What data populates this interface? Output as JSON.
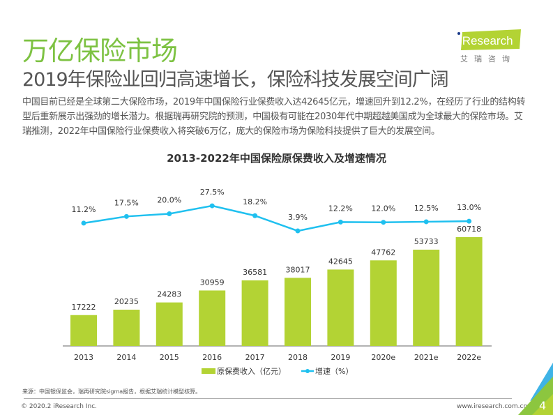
{
  "header": {
    "title": "万亿保险市场",
    "subtitle": "2019年保险业回归高速增长，保险科技发展空间广阔",
    "body": "中国目前已经是全球第二大保险市场，2019年中国保险行业保费收入达42645亿元，增速回升到12.2%，在经历了行业的结构转型后重新展示出强劲的增长潜力。根据瑞再研究院的预测，中国极有可能在2030年代中期超越美国成为全球最大的保险市场。艾瑞推测，2022年中国保险行业保费收入将突破6万亿，庞大的保险市场为保险科技提供了巨大的发展空间。"
  },
  "logo": {
    "text": "iResearch",
    "sub": "艾瑞咨询",
    "color": "#b3d334"
  },
  "chart_data": {
    "type": "bar+line",
    "title": "2013-2022年中国保险原保费收入及增速情况",
    "categories": [
      "2013",
      "2014",
      "2015",
      "2016",
      "2017",
      "2018",
      "2019",
      "2020e",
      "2021e",
      "2022e"
    ],
    "series": [
      {
        "name": "原保费收入（亿元）",
        "type": "bar",
        "color": "#b3d334",
        "values": [
          17222,
          20235,
          24283,
          30959,
          36581,
          38017,
          42645,
          47762,
          53733,
          60718
        ],
        "labels": [
          "17222",
          "20235",
          "24283",
          "30959",
          "36581",
          "38017",
          "42645",
          "47762",
          "53733",
          "60718"
        ]
      },
      {
        "name": "增速（%）",
        "type": "line",
        "color": "#1fc0ef",
        "values": [
          11.2,
          17.5,
          20.0,
          27.5,
          18.2,
          3.9,
          12.2,
          12.0,
          12.5,
          13.0
        ],
        "labels": [
          "11.2%",
          "17.5%",
          "20.0%",
          "27.5%",
          "18.2%",
          "3.9%",
          "12.2%",
          "12.0%",
          "12.5%",
          "13.0%"
        ]
      }
    ],
    "legend": "bottom",
    "grid": false
  },
  "footer": {
    "source": "来源：中国银保监会，瑞再研究院sigma报告，根据艾瑞统计模型核算。",
    "copyright": "© 2020.2 iResearch Inc.",
    "site": "www.iresearch.com.cn",
    "page": "4"
  }
}
